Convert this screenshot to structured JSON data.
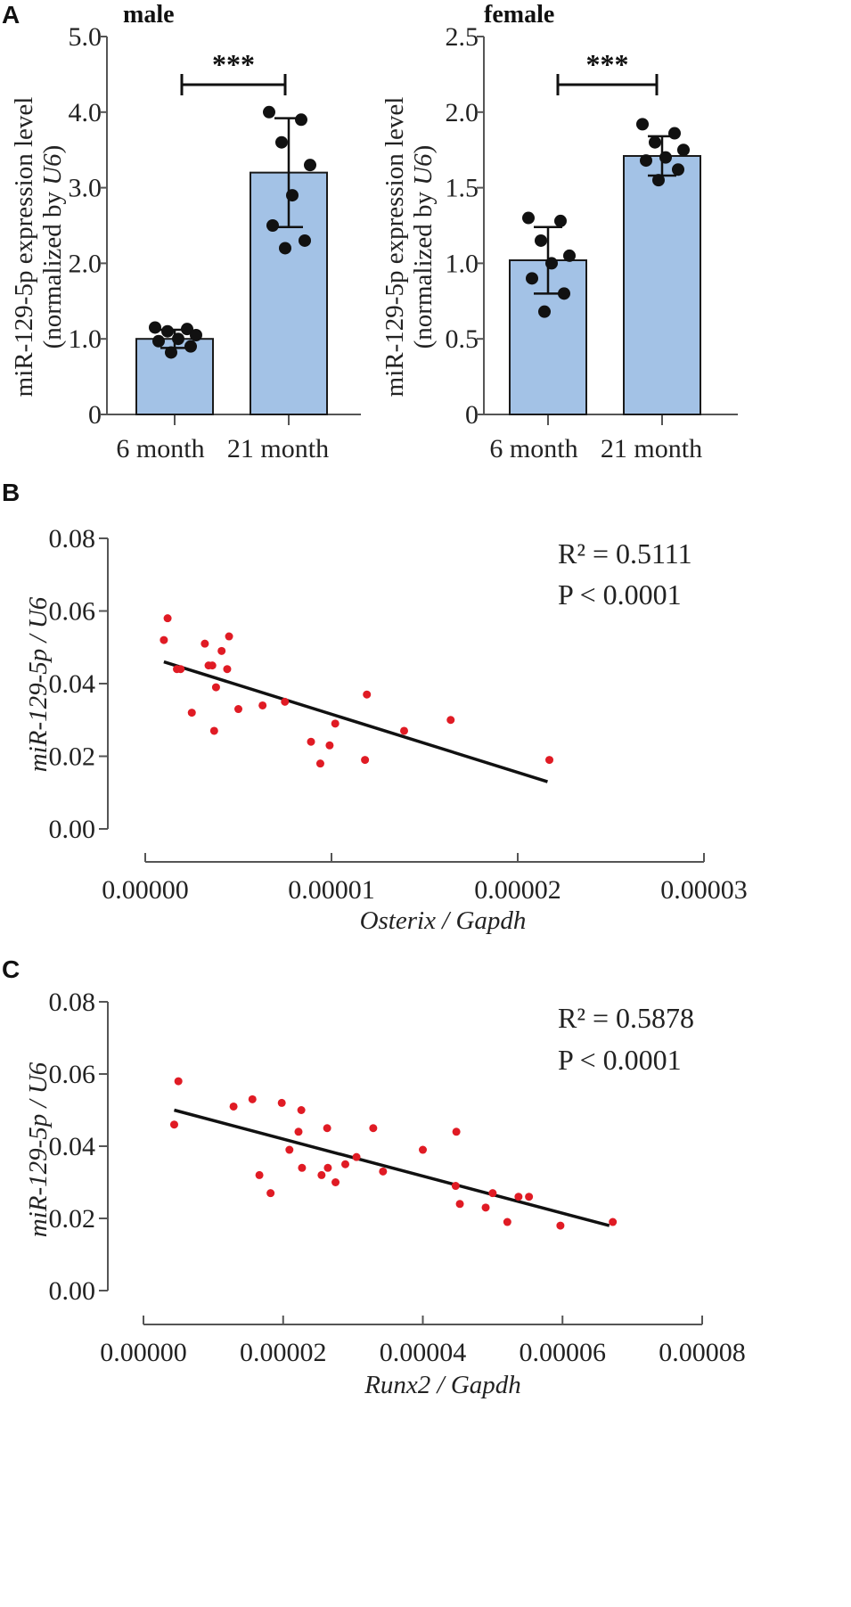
{
  "panel_letters": [
    "A",
    "B",
    "C"
  ],
  "colors": {
    "bar_fill": "#a3c2e6",
    "bar_stroke": "#1a1a1a",
    "dot": "#111111",
    "scatter": "#e01b24",
    "fit": "#111111"
  },
  "chart_data": [
    {
      "type": "bar",
      "panel": "A",
      "title": "male",
      "categories": [
        "6 month",
        "21 month"
      ],
      "values": [
        1.0,
        3.2
      ],
      "error_sd": [
        0.12,
        0.72
      ],
      "points": [
        [
          1.15,
          1.13,
          1.1,
          1.05,
          1.0,
          0.97,
          0.9,
          0.82
        ],
        [
          4.0,
          3.9,
          3.6,
          3.3,
          2.9,
          2.5,
          2.3,
          2.2
        ]
      ],
      "ylabel_line1": "miR-129-5p  expression level",
      "ylabel_line2": "(normalized by U6)",
      "yticks": [
        "0",
        "1.0",
        "2.0",
        "3.0",
        "4.0",
        "5.0"
      ],
      "ylim": [
        0,
        5.0
      ],
      "significance": "***"
    },
    {
      "type": "bar",
      "panel": "A",
      "title": "female",
      "categories": [
        "6 month",
        "21 month"
      ],
      "values": [
        1.02,
        1.71
      ],
      "error_sd": [
        0.22,
        0.13
      ],
      "points": [
        [
          1.3,
          1.28,
          1.15,
          1.05,
          1.0,
          0.9,
          0.8,
          0.68
        ],
        [
          1.92,
          1.86,
          1.8,
          1.75,
          1.7,
          1.68,
          1.62,
          1.55
        ]
      ],
      "ylabel_line1": "miR-129-5p  expression level",
      "ylabel_line2": "(normalized by U6)",
      "yticks": [
        "0",
        "0.5",
        "1.0",
        "1.5",
        "2.0",
        "2.5"
      ],
      "ylim": [
        0,
        2.5
      ],
      "significance": "***"
    },
    {
      "type": "scatter",
      "panel": "B",
      "ylabel": "miR-129-5p / U6",
      "xlabel": "Osterix / Gapdh",
      "xticks": [
        "0.00000",
        "0.00001",
        "0.00002",
        "0.00003"
      ],
      "yticks": [
        "0.00",
        "0.02",
        "0.04",
        "0.06",
        "0.08"
      ],
      "xlim": [
        0,
        3e-05
      ],
      "ylim": [
        0,
        0.08
      ],
      "x": [
        1.2e-06,
        1e-06,
        1.7e-06,
        3.2e-06,
        4.5e-06,
        4.1e-06,
        3.4e-06,
        3.8e-06,
        4.4e-06,
        1.9e-06,
        3.6e-06,
        2.5e-06,
        5e-06,
        6.3e-06,
        7.5e-06,
        3.7e-06,
        8.9e-06,
        9.9e-06,
        9.4e-06,
        1.02e-05,
        1.18e-05,
        1.19e-05,
        1.39e-05,
        1.64e-05,
        2.17e-05
      ],
      "y": [
        0.058,
        0.052,
        0.044,
        0.051,
        0.053,
        0.049,
        0.045,
        0.039,
        0.044,
        0.044,
        0.045,
        0.032,
        0.033,
        0.034,
        0.035,
        0.027,
        0.024,
        0.023,
        0.018,
        0.029,
        0.019,
        0.037,
        0.027,
        0.03,
        0.019
      ],
      "fit": {
        "x": [
          1e-06,
          2.16e-05
        ],
        "y": [
          0.046,
          0.013
        ]
      },
      "r2_label": "R² = 0.5111",
      "p_label": "P < 0.0001"
    },
    {
      "type": "scatter",
      "panel": "C",
      "ylabel": "miR-129-5p / U6",
      "xlabel": "Runx2 / Gapdh",
      "xticks": [
        "0.00000",
        "0.00002",
        "0.00004",
        "0.00006",
        "0.00008"
      ],
      "yticks": [
        "0.00",
        "0.02",
        "0.04",
        "0.06",
        "0.08"
      ],
      "xlim": [
        0,
        8e-05
      ],
      "ylim": [
        0,
        0.08
      ],
      "x": [
        5e-06,
        4.4e-06,
        1.29e-05,
        1.56e-05,
        1.98e-05,
        2.26e-05,
        2.22e-05,
        2.63e-05,
        2.09e-05,
        2.27e-05,
        1.66e-05,
        1.82e-05,
        2.55e-05,
        2.64e-05,
        2.75e-05,
        2.89e-05,
        3.05e-05,
        3.29e-05,
        3.43e-05,
        4e-05,
        4.48e-05,
        4.47e-05,
        4.53e-05,
        4.9e-05,
        5e-05,
        5.21e-05,
        5.37e-05,
        5.52e-05,
        5.97e-05,
        6.72e-05
      ],
      "y": [
        0.058,
        0.046,
        0.051,
        0.053,
        0.052,
        0.05,
        0.044,
        0.045,
        0.039,
        0.034,
        0.032,
        0.027,
        0.032,
        0.034,
        0.03,
        0.035,
        0.037,
        0.045,
        0.033,
        0.039,
        0.044,
        0.029,
        0.024,
        0.023,
        0.027,
        0.019,
        0.026,
        0.026,
        0.018,
        0.019
      ],
      "fit": {
        "x": [
          4.4e-06,
          6.67e-05
        ],
        "y": [
          0.05,
          0.018
        ]
      },
      "r2_label": "R² = 0.5878",
      "p_label": "P < 0.0001"
    }
  ]
}
